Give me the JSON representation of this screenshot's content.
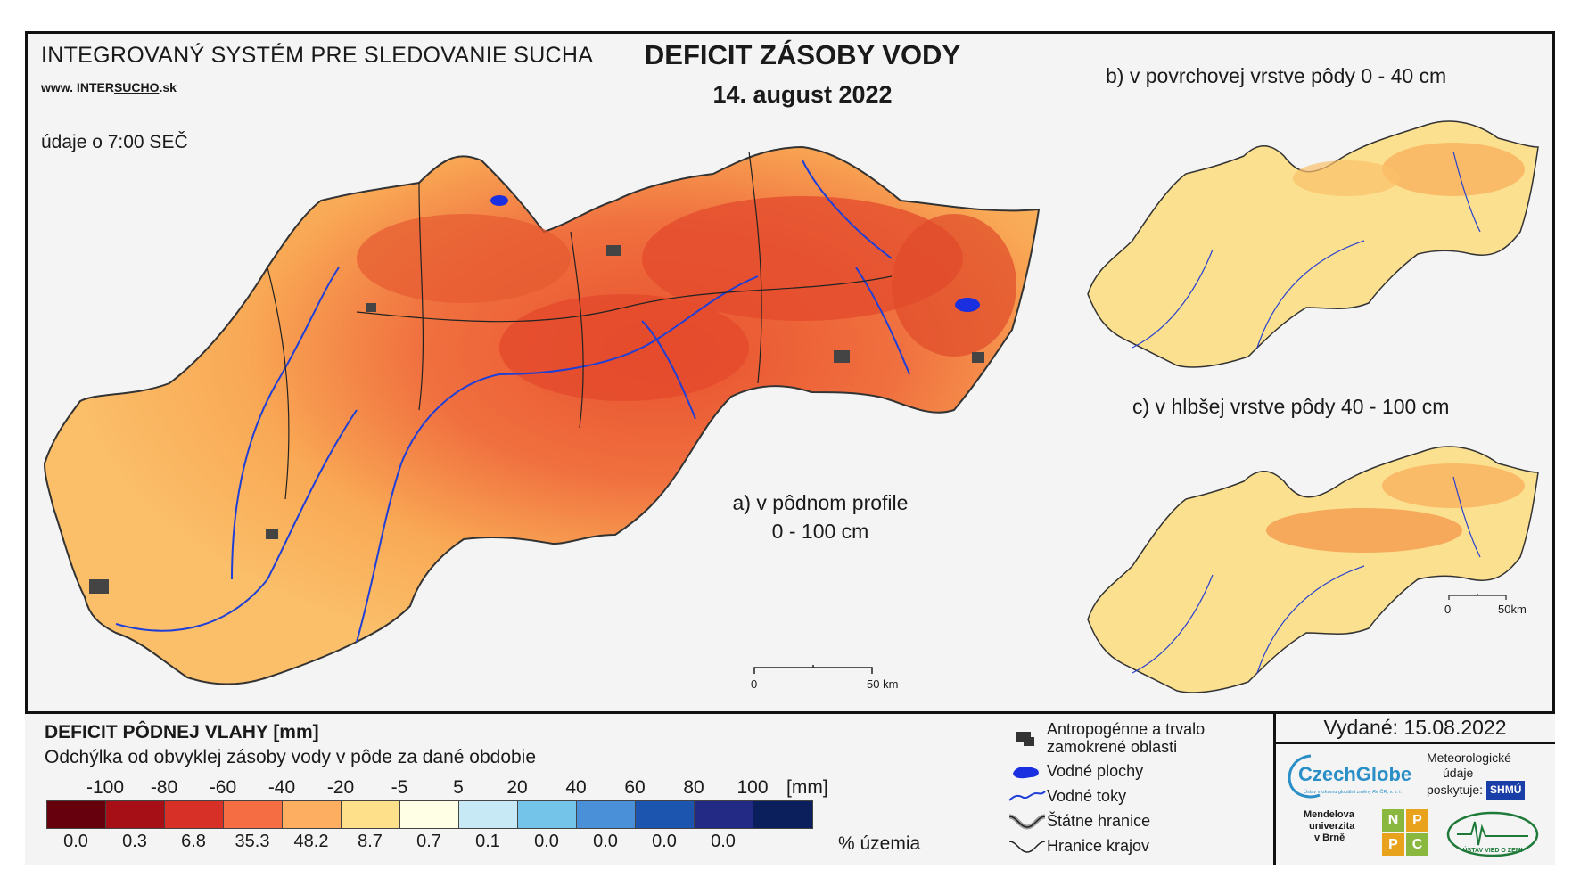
{
  "header": {
    "system_title": "INTEGROVANÝ SYSTÉM PRE SLEDOVANIE SUCHA",
    "website_prefix": "www. INTER",
    "website_highlight": "SUCHO",
    "website_suffix": ".sk",
    "data_time": "údaje o 7:00 SEČ",
    "main_title": "DEFICIT ZÁSOBY VODY",
    "date": "14. august 2022"
  },
  "maps": {
    "a_label_line1": "a) v pôdnom profile",
    "a_label_line2": "0 - 100 cm",
    "b_label": "b) v povrchovej vrstve pôdy 0 - 40 cm",
    "c_label": "c) v hlbšej vrstve pôdy 40 - 100 cm",
    "scale_main_zero": "0",
    "scale_main_end": "50 km",
    "scale_small_zero": "0",
    "scale_small_end": "50km"
  },
  "legend": {
    "title": "DEFICIT PÔDNEJ VLAHY [mm]",
    "subtitle": "Odchýlka od obvyklej zásoby vody v pôde za dané obdobie",
    "ticks": [
      "-100",
      "-80",
      "-60",
      "-40",
      "-20",
      "-5",
      "5",
      "20",
      "40",
      "60",
      "80",
      "100"
    ],
    "unit": "[mm]",
    "colors": [
      "#67000d",
      "#a50f15",
      "#d73027",
      "#f46d43",
      "#fdae61",
      "#fee08b",
      "#ffffe5",
      "#c6e9f5",
      "#74c3e8",
      "#4a90d9",
      "#1c55b0",
      "#222a85",
      "#0b1f5c"
    ],
    "percentages": [
      "0.0",
      "0.3",
      "6.8",
      "35.3",
      "48.2",
      "8.7",
      "0.7",
      "0.1",
      "0.0",
      "0.0",
      "0.0",
      "0.0"
    ],
    "percent_label": "% územia"
  },
  "symbols": {
    "anthropogenic_line1": "Antropogénne a trvalo",
    "anthropogenic_line2": "zamokrené oblasti",
    "water_bodies": "Vodné plochy",
    "rivers": "Vodné toky",
    "state_border": "Štátne hranice",
    "region_border": "Hranice krajov"
  },
  "issued": "Vydané: 15.08.2022",
  "logos": {
    "czechglobe": "CzechGlobe",
    "czechglobe_sub": "Ústav výzkumu globální změny AV ČR, v. v. i.",
    "meteo_line1": "Meteorologické",
    "meteo_line2": "údaje",
    "meteo_line3": "poskytuje:",
    "shmu": "SHMÚ",
    "mendel_line1": "Mendelova",
    "mendel_line2": "univerzita",
    "mendel_line3": "v Brně",
    "npc": [
      "N",
      "P",
      "P",
      "C"
    ],
    "uvz": "ÚSTAV VIED O ZEMI"
  }
}
